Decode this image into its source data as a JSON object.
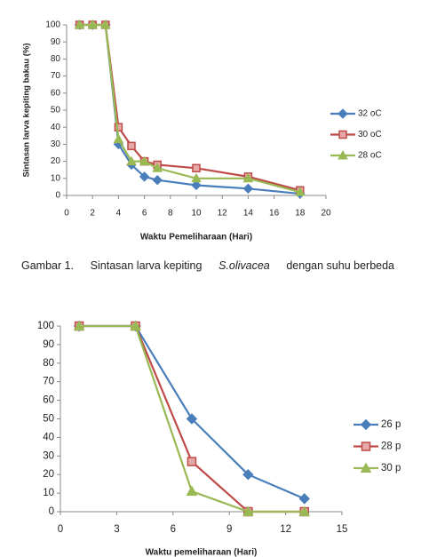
{
  "chart_data": [
    {
      "type": "line",
      "y_label": "Sintasan larva kepiting bakau (%)",
      "x_label": "Waktu Pemeliharaan (Hari)",
      "x": [
        1,
        2,
        3,
        4,
        5,
        6,
        7,
        10,
        14,
        18
      ],
      "series": [
        {
          "name": "32 oC",
          "color": "#4a7ebb",
          "marker": "diamond",
          "values": [
            100,
            100,
            100,
            30,
            18,
            11,
            9,
            6,
            4,
            1
          ]
        },
        {
          "name": "30 oC",
          "color": "#be4b48",
          "marker": "square",
          "values": [
            100,
            100,
            100,
            40,
            29,
            20,
            18,
            16,
            11,
            3
          ]
        },
        {
          "name": "28 oC",
          "color": "#98b954",
          "marker": "triangle",
          "values": [
            100,
            100,
            100,
            33,
            20,
            20,
            16,
            10,
            10,
            2
          ]
        }
      ],
      "xlim": [
        0,
        20
      ],
      "xticks": [
        0,
        2,
        4,
        6,
        8,
        10,
        12,
        14,
        16,
        18,
        20
      ],
      "ylim": [
        0,
        100
      ],
      "yticks": [
        0,
        10,
        20,
        30,
        40,
        50,
        60,
        70,
        80,
        90,
        100
      ],
      "legend": "right"
    },
    {
      "type": "line",
      "x_label": "Waktu pemeliharaan (Hari)",
      "x": [
        1,
        4,
        7,
        10,
        13
      ],
      "series": [
        {
          "name": "26 p",
          "color": "#4a7ebb",
          "marker": "diamond",
          "values": [
            100,
            100,
            50,
            20,
            7
          ]
        },
        {
          "name": "28 p",
          "color": "#be4b48",
          "marker": "square",
          "values": [
            100,
            100,
            27,
            0,
            0
          ]
        },
        {
          "name": "30 p",
          "color": "#98b954",
          "marker": "triangle",
          "values": [
            100,
            100,
            11,
            0,
            0
          ]
        }
      ],
      "xlim": [
        0,
        15
      ],
      "xticks": [
        0,
        3,
        6,
        9,
        12,
        15
      ],
      "ylim": [
        0,
        100
      ],
      "yticks": [
        0,
        10,
        20,
        30,
        40,
        50,
        60,
        70,
        80,
        90,
        100
      ],
      "legend": "right"
    }
  ],
  "caption": {
    "label": "Gambar 1.",
    "text_before": "Sintasan larva kepiting",
    "species": "S.olivacea",
    "text_after": "dengan suhu berbeda"
  }
}
